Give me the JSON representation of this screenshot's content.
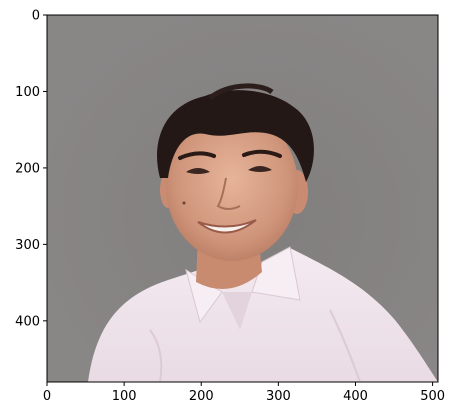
{
  "plot": {
    "x_ticks": [
      "0",
      "100",
      "200",
      "300",
      "400",
      "500"
    ],
    "y_ticks": [
      "0",
      "100",
      "200",
      "300",
      "400"
    ],
    "x_tick_values": [
      0,
      100,
      200,
      300,
      400,
      500
    ],
    "y_tick_values": [
      0,
      100,
      200,
      300,
      400
    ],
    "xlim": [
      0,
      507
    ],
    "ylim": [
      0,
      480
    ],
    "background_color": "#878484",
    "subject": "portrait-photo"
  }
}
